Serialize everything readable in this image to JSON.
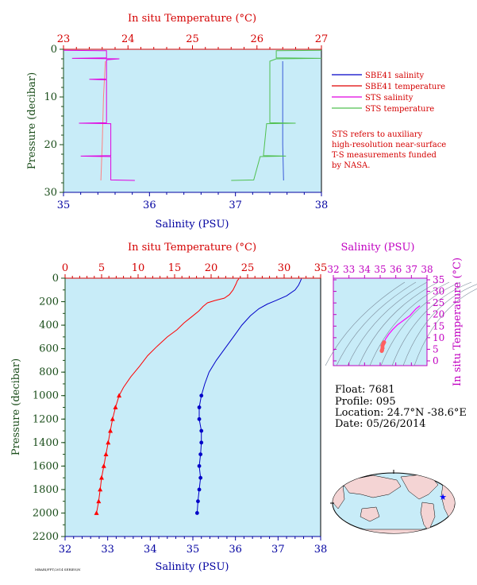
{
  "chart_data": [
    {
      "type": "line",
      "panel": "near-surface profile",
      "top_axis_label": "In situ Temperature (°C)",
      "top_ticks": [
        "23",
        "24",
        "25",
        "26",
        "27"
      ],
      "top_range": [
        23,
        27
      ],
      "bottom_axis_label": "Salinity (PSU)",
      "bottom_ticks": [
        "35",
        "36",
        "37",
        "38"
      ],
      "bottom_range": [
        35,
        38
      ],
      "ylabel": "Pressure (decibar)",
      "y_ticks": [
        "0",
        "10",
        "20",
        "30"
      ],
      "ylim": [
        0,
        30
      ],
      "legend": [
        {
          "name": "SBE41 salinity",
          "color": "#0000c8"
        },
        {
          "name": "SBE41 temperature",
          "color": "#e00000"
        },
        {
          "name": "STS salinity",
          "color": "#e000e0"
        },
        {
          "name": "STS temperature",
          "color": "#50c050"
        }
      ],
      "note": [
        "STS refers to auxiliary",
        "high-resolution near-surface",
        "T-S measurements funded",
        "by NASA."
      ],
      "series": [
        {
          "name": "SBE41 salinity",
          "color": "#3a5ad8",
          "axis": "bottom",
          "points": [
            [
              37.55,
              2.5
            ],
            [
              37.55,
              10
            ],
            [
              37.55,
              20
            ],
            [
              37.56,
              27.5
            ]
          ]
        },
        {
          "name": "SBE41 temperature",
          "color": "#ff8080",
          "axis": "top",
          "points": [
            [
              23.65,
              2.5
            ],
            [
              23.62,
              10
            ],
            [
              23.6,
              20
            ],
            [
              23.58,
              27.5
            ]
          ]
        },
        {
          "name": "STS salinity",
          "color": "#e000e0",
          "axis": "bottom",
          "points": [
            [
              35.0,
              0.2
            ],
            [
              35.5,
              0.3
            ],
            [
              35.5,
              1.8
            ],
            [
              35.1,
              1.9
            ],
            [
              35.65,
              2.0
            ],
            [
              35.5,
              2.2
            ],
            [
              35.5,
              6.2
            ],
            [
              35.3,
              6.3
            ],
            [
              35.5,
              6.4
            ],
            [
              35.5,
              15.4
            ],
            [
              35.18,
              15.5
            ],
            [
              35.55,
              15.6
            ],
            [
              35.55,
              22.3
            ],
            [
              35.2,
              22.4
            ],
            [
              35.55,
              22.5
            ],
            [
              35.55,
              27.4
            ],
            [
              35.83,
              27.5
            ]
          ]
        },
        {
          "name": "STS temperature",
          "color": "#50c050",
          "axis": "top",
          "points": [
            [
              27.0,
              0.2
            ],
            [
              26.3,
              0.3
            ],
            [
              26.3,
              1.8
            ],
            [
              27.0,
              1.9
            ],
            [
              26.3,
              2.0
            ],
            [
              26.2,
              2.5
            ],
            [
              26.2,
              15.4
            ],
            [
              26.6,
              15.5
            ],
            [
              26.15,
              15.6
            ],
            [
              26.1,
              22.3
            ],
            [
              26.45,
              22.4
            ],
            [
              26.05,
              22.5
            ],
            [
              25.95,
              27.4
            ],
            [
              25.6,
              27.5
            ]
          ]
        }
      ]
    },
    {
      "type": "line",
      "panel": "full-depth profile",
      "top_axis_label": "In situ Temperature (°C)",
      "top_ticks": [
        "0",
        "5",
        "10",
        "15",
        "20",
        "25",
        "30",
        "35"
      ],
      "top_range": [
        0,
        35
      ],
      "bottom_axis_label": "Salinity (PSU)",
      "bottom_ticks": [
        "32",
        "33",
        "34",
        "35",
        "36",
        "37",
        "38"
      ],
      "bottom_range": [
        32,
        38
      ],
      "ylabel": "Pressure (decibar)",
      "y_ticks": [
        "0",
        "200",
        "400",
        "600",
        "800",
        "1000",
        "1200",
        "1400",
        "1600",
        "1800",
        "2000",
        "2200"
      ],
      "ylim": [
        0,
        2200
      ],
      "series": [
        {
          "name": "Temperature",
          "color": "#ff0000",
          "axis": "top",
          "marker": "triangle",
          "points": [
            [
              23.8,
              5
            ],
            [
              23.6,
              20
            ],
            [
              23.4,
              50
            ],
            [
              23.0,
              100
            ],
            [
              22.5,
              140
            ],
            [
              21.8,
              170
            ],
            [
              20.5,
              190
            ],
            [
              19.5,
              210
            ],
            [
              18.9,
              240
            ],
            [
              18.3,
              280
            ],
            [
              17.3,
              330
            ],
            [
              16.3,
              380
            ],
            [
              15.3,
              440
            ],
            [
              14.0,
              500
            ],
            [
              12.6,
              580
            ],
            [
              11.3,
              660
            ],
            [
              10.2,
              750
            ],
            [
              9.0,
              840
            ],
            [
              8.0,
              930
            ],
            [
              7.4,
              1000
            ],
            [
              6.9,
              1100
            ],
            [
              6.5,
              1200
            ],
            [
              6.2,
              1300
            ],
            [
              5.9,
              1400
            ],
            [
              5.6,
              1500
            ],
            [
              5.3,
              1600
            ],
            [
              5.0,
              1700
            ],
            [
              4.8,
              1800
            ],
            [
              4.6,
              1900
            ],
            [
              4.3,
              2000
            ]
          ],
          "markers_from_pressure": 1000
        },
        {
          "name": "Salinity",
          "color": "#0000c8",
          "axis": "bottom",
          "marker": "circle",
          "points": [
            [
              37.55,
              5
            ],
            [
              37.52,
              30
            ],
            [
              37.48,
              60
            ],
            [
              37.4,
              100
            ],
            [
              37.2,
              150
            ],
            [
              36.95,
              190
            ],
            [
              36.75,
              220
            ],
            [
              36.55,
              260
            ],
            [
              36.35,
              320
            ],
            [
              36.15,
              400
            ],
            [
              35.95,
              500
            ],
            [
              35.75,
              600
            ],
            [
              35.55,
              700
            ],
            [
              35.38,
              800
            ],
            [
              35.28,
              900
            ],
            [
              35.2,
              1000
            ],
            [
              35.15,
              1100
            ],
            [
              35.15,
              1200
            ],
            [
              35.2,
              1300
            ],
            [
              35.2,
              1400
            ],
            [
              35.18,
              1500
            ],
            [
              35.15,
              1600
            ],
            [
              35.18,
              1700
            ],
            [
              35.15,
              1800
            ],
            [
              35.12,
              1900
            ],
            [
              35.1,
              2000
            ]
          ],
          "markers_from_pressure": 1000
        }
      ]
    },
    {
      "type": "scatter",
      "panel": "T-S diagram",
      "top_axis_label": "Salinity (PSU)",
      "top_ticks": [
        "32",
        "33",
        "34",
        "35",
        "36",
        "37",
        "38"
      ],
      "top_range": [
        32,
        38
      ],
      "right_axis_label": "In situ Temperature (°C)",
      "right_ticks": [
        "0",
        "5",
        "10",
        "15",
        "20",
        "25",
        "30",
        "35"
      ],
      "right_range": [
        0,
        35
      ],
      "series": [
        {
          "name": "T-S profile",
          "color": "#ff00ff",
          "points": [
            [
              37.55,
              23.8
            ],
            [
              37.3,
              22.5
            ],
            [
              36.9,
              19.5
            ],
            [
              36.5,
              17.5
            ],
            [
              36.1,
              15.5
            ],
            [
              35.8,
              13.5
            ],
            [
              35.55,
              11.5
            ],
            [
              35.35,
              9.5
            ],
            [
              35.25,
              8.0
            ],
            [
              35.2,
              7.4
            ],
            [
              35.15,
              6.5
            ],
            [
              35.15,
              5.5
            ],
            [
              35.12,
              4.6
            ],
            [
              35.1,
              4.3
            ]
          ],
          "marker_color": "#ff6060",
          "markers_below_temp": 8
        }
      ]
    }
  ],
  "info": {
    "float": "Float:  7681",
    "profile": "Profile:  095",
    "location": "Location:  24.7°N  -38.6°E",
    "date": "Date:  05/26/2014"
  },
  "map": {
    "marker": "★",
    "lat": 24.7,
    "lon": -38.6,
    "marker_color": "#0000ff"
  },
  "footer": "MBARI/FPT/2014 SERIES/N",
  "colors": {
    "plot_bg": "#c8ecf8",
    "temperature": "#d40000",
    "salinity": "#0000a0",
    "pressure": "#1a4d1a",
    "ts_axis": "#c000c0"
  }
}
